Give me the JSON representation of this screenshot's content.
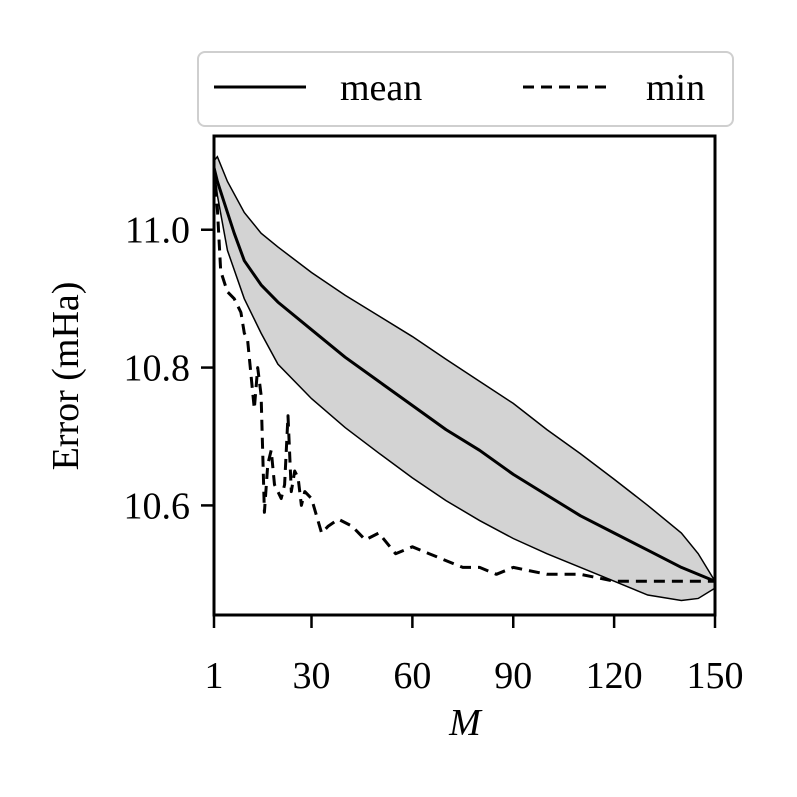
{
  "chart_data": {
    "type": "line",
    "title": "",
    "xlabel": "M",
    "ylabel": "Error (mHa)",
    "xlim": [
      1,
      150
    ],
    "ylim": [
      10.441,
      11.136
    ],
    "xticks": [
      1,
      30,
      60,
      90,
      120,
      150
    ],
    "xtick_labels": [
      "1",
      "30",
      "60",
      "90",
      "120",
      "150"
    ],
    "yticks": [
      10.6,
      10.8,
      11.0
    ],
    "ytick_labels": [
      "10.6",
      "10.8",
      "11.0"
    ],
    "grid": false,
    "legend": {
      "position": "top",
      "entries": [
        {
          "label": "mean",
          "style": "solid"
        },
        {
          "label": "min",
          "style": "dashed"
        }
      ]
    },
    "band": {
      "color": "#d3d3d3",
      "x": [
        1,
        2,
        5,
        10,
        15,
        20,
        30,
        40,
        50,
        60,
        70,
        80,
        90,
        100,
        110,
        120,
        130,
        140,
        145,
        150
      ],
      "upper": [
        11.1,
        11.106,
        11.07,
        11.025,
        10.995,
        10.975,
        10.938,
        10.905,
        10.875,
        10.845,
        10.812,
        10.78,
        10.748,
        10.71,
        10.675,
        10.638,
        10.6,
        10.56,
        10.53,
        10.49
      ],
      "lower": [
        11.09,
        11.05,
        10.97,
        10.9,
        10.85,
        10.805,
        10.755,
        10.713,
        10.676,
        10.64,
        10.607,
        10.578,
        10.552,
        10.53,
        10.51,
        10.49,
        10.47,
        10.462,
        10.465,
        10.48
      ]
    },
    "series": [
      {
        "name": "mean",
        "style": "solid",
        "color": "#000000",
        "x": [
          1,
          2,
          4,
          7,
          10,
          15,
          20,
          30,
          40,
          50,
          60,
          70,
          80,
          90,
          100,
          110,
          120,
          130,
          140,
          150
        ],
        "values": [
          11.09,
          11.07,
          11.04,
          10.995,
          10.955,
          10.92,
          10.895,
          10.855,
          10.815,
          10.78,
          10.745,
          10.71,
          10.68,
          10.645,
          10.615,
          10.585,
          10.56,
          10.535,
          10.51,
          10.49
        ]
      },
      {
        "name": "min",
        "style": "dashed",
        "color": "#000000",
        "x": [
          1,
          2,
          3,
          5,
          7,
          9,
          10,
          11,
          13,
          14,
          15,
          16,
          17,
          18,
          19,
          20,
          21,
          22,
          23,
          24,
          25,
          26,
          27,
          28,
          30,
          33,
          35,
          38,
          42,
          46,
          50,
          55,
          60,
          65,
          70,
          75,
          80,
          85,
          90,
          100,
          110,
          120,
          130,
          140,
          150
        ],
        "values": [
          11.09,
          11.03,
          10.94,
          10.91,
          10.9,
          10.88,
          10.85,
          10.84,
          10.74,
          10.8,
          10.76,
          10.59,
          10.66,
          10.68,
          10.63,
          10.62,
          10.61,
          10.63,
          10.73,
          10.62,
          10.65,
          10.64,
          10.6,
          10.62,
          10.61,
          10.56,
          10.57,
          10.58,
          10.57,
          10.55,
          10.56,
          10.53,
          10.54,
          10.53,
          10.52,
          10.51,
          10.51,
          10.5,
          10.51,
          10.5,
          10.5,
          10.49,
          10.49,
          10.49,
          10.49
        ]
      }
    ]
  }
}
